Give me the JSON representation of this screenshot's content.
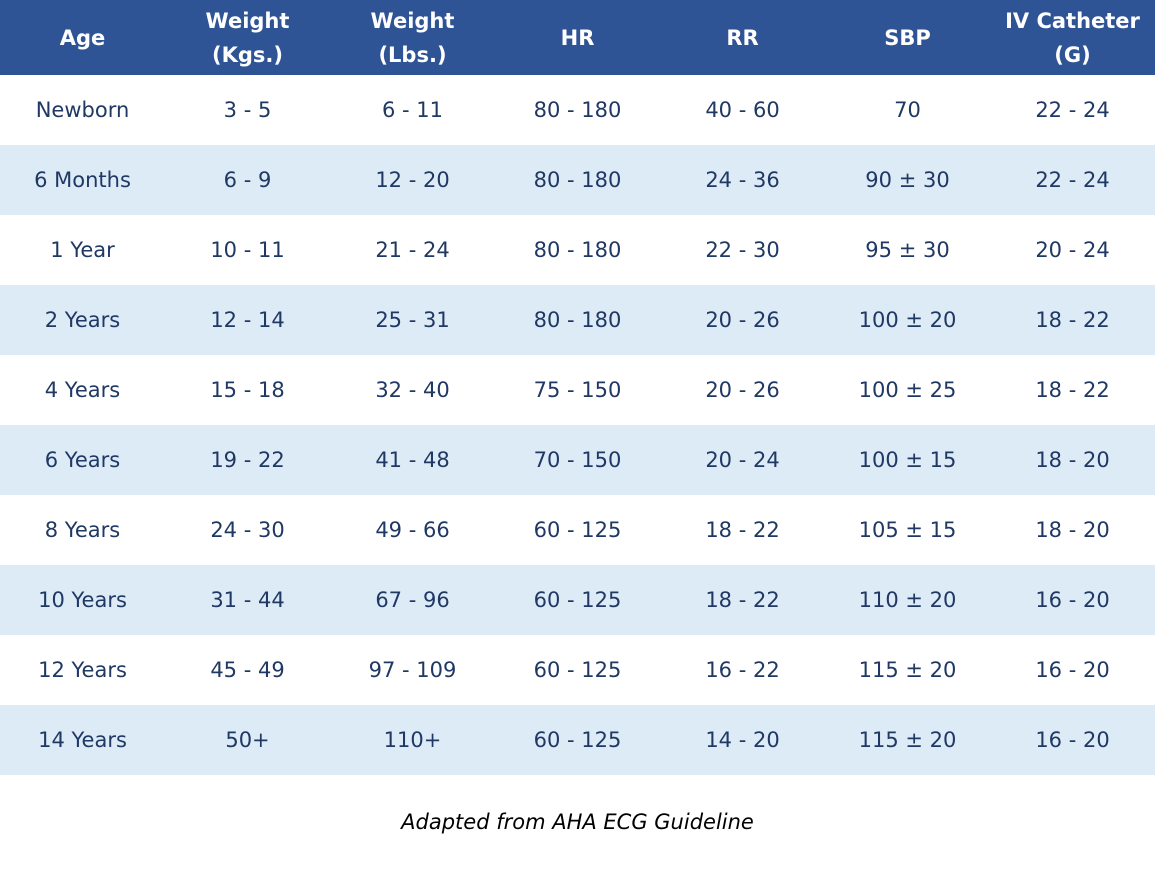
{
  "table": {
    "header": [
      "Age",
      "Weight (Kgs.)",
      "Weight (Lbs.)",
      "HR",
      "RR",
      "SBP",
      "IV Catheter (G)"
    ],
    "rows": [
      [
        "Newborn",
        "3 - 5",
        "6 - 11",
        "80 - 180",
        "40 - 60",
        "70",
        "22 - 24"
      ],
      [
        "6 Months",
        "6 - 9",
        "12 - 20",
        "80 - 180",
        "24 - 36",
        "90 ± 30",
        "22 - 24"
      ],
      [
        "1 Year",
        "10 - 11",
        "21 - 24",
        "80 - 180",
        "22 - 30",
        "95 ± 30",
        "20 - 24"
      ],
      [
        "2 Years",
        "12 - 14",
        "25 - 31",
        "80 - 180",
        "20 - 26",
        "100 ± 20",
        "18 - 22"
      ],
      [
        "4 Years",
        "15 - 18",
        "32 - 40",
        "75 - 150",
        "20 - 26",
        "100 ± 25",
        "18 - 22"
      ],
      [
        "6 Years",
        "19 - 22",
        "41 - 48",
        "70 - 150",
        "20 - 24",
        "100 ± 15",
        "18 - 20"
      ],
      [
        "8 Years",
        "24 - 30",
        "49 - 66",
        "60 - 125",
        "18 - 22",
        "105 ± 15",
        "18 - 20"
      ],
      [
        "10 Years",
        "31 - 44",
        "67 - 96",
        "60 - 125",
        "18 - 22",
        "110 ± 20",
        "16 - 20"
      ],
      [
        "12 Years",
        "45 - 49",
        "97 - 109",
        "60 - 125",
        "16 - 22",
        "115 ± 20",
        "16 - 20"
      ],
      [
        "14 Years",
        "50+",
        "110+",
        "60 - 125",
        "14 - 20",
        "115 ± 20",
        "16 - 20"
      ]
    ]
  },
  "footer": {
    "note": "Adapted from AHA ECG Guideline"
  }
}
